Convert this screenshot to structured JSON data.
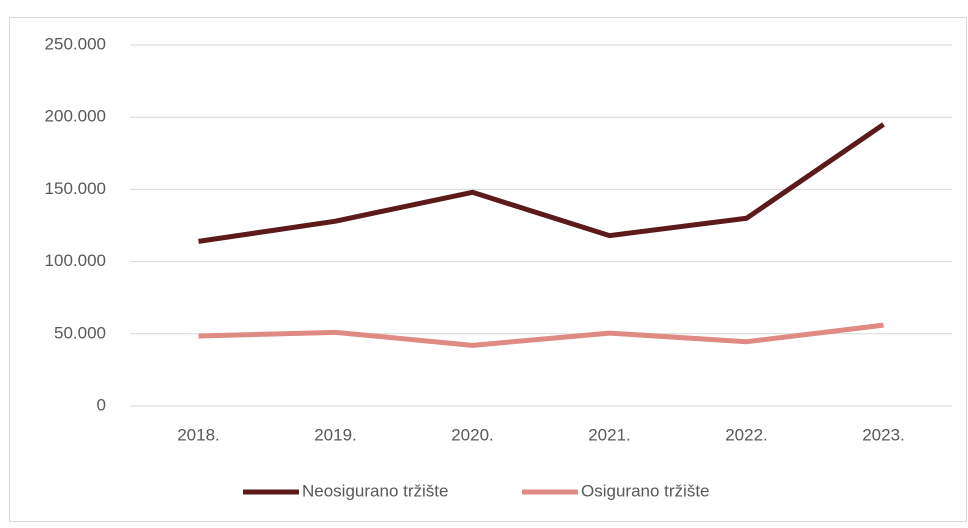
{
  "chart_data": {
    "type": "line",
    "categories": [
      "2018.",
      "2019.",
      "2020.",
      "2021.",
      "2022.",
      "2023."
    ],
    "series": [
      {
        "name": "Neosigurano tržište",
        "color": "#5c1a1a",
        "values": [
          114000,
          128000,
          148000,
          118000,
          130000,
          195000
        ]
      },
      {
        "name": "Osigurano tržište",
        "color": "#e08a84",
        "values": [
          48500,
          51000,
          42000,
          50500,
          44500,
          56000
        ]
      }
    ],
    "ylim": [
      0,
      250000
    ],
    "yticks": [
      0,
      {
        "value": 50000,
        "label": "50.000"
      },
      {
        "value": 100000,
        "label": "100.000"
      },
      {
        "value": 150000,
        "label": "150.000"
      },
      {
        "value": 200000,
        "label": "200.000"
      },
      {
        "value": 250000,
        "label": "250.000"
      }
    ],
    "grid": true,
    "legend": "bottom"
  }
}
